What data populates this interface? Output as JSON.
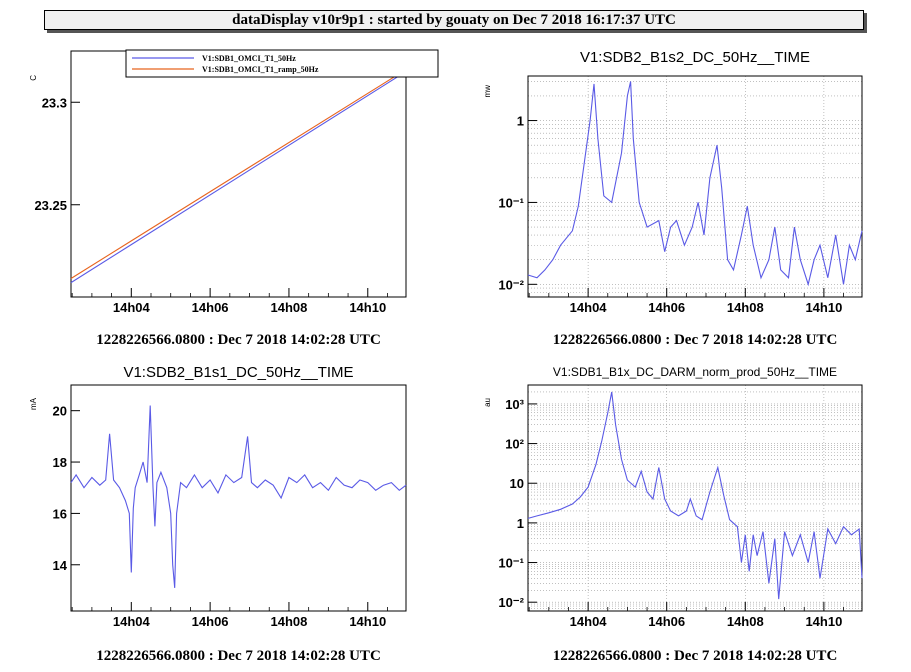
{
  "window": {
    "title": "dataDisplay v10r9p1 : started by gouaty on Dec  7 2018 16:17:37 UTC"
  },
  "colors": {
    "blue": "#5a5ae6",
    "orange": "#e8641e",
    "grid": "#9a9a9a"
  },
  "x_ticks": [
    "14h04",
    "14h06",
    "14h08",
    "14h10"
  ],
  "chart_data": [
    {
      "type": "line",
      "title": "",
      "ylabel": "C",
      "caption": "1228226566.0800 : Dec  7 2018 14:02:28 UTC",
      "xlabels": [
        "14h04",
        "14h06",
        "14h08",
        "14h10"
      ],
      "xlim_minutes": [
        2.47,
        10.97
      ],
      "ylim": [
        23.205,
        23.325
      ],
      "ytick_labels": [
        "23.25",
        "23.3"
      ],
      "ytick_values": [
        23.25,
        23.3
      ],
      "grid": false,
      "legend": "top",
      "series": [
        {
          "name": "V1:SDB1_OMCI_T1_50Hz",
          "color": "#5a5ae6",
          "x_minutes": [
            2.47,
            10.97
          ],
          "y": [
            23.212,
            23.315
          ]
        },
        {
          "name": "V1:SDB1_OMCI_T1_ramp_50Hz",
          "color": "#e8641e",
          "x_minutes": [
            2.47,
            10.97
          ],
          "y": [
            23.214,
            23.316
          ]
        }
      ]
    },
    {
      "type": "line",
      "title": "V1:SDB2_B1s2_DC_50Hz__TIME",
      "ylabel": "mw",
      "caption": "1228226566.0800 : Dec  7 2018 14:02:28 UTC",
      "xlabels": [
        "14h04",
        "14h06",
        "14h08",
        "14h10"
      ],
      "xlim_minutes": [
        2.47,
        10.97
      ],
      "yscale": "log",
      "ylim": [
        0.007,
        3.5
      ],
      "ytick_labels": [
        "10⁻²",
        "10⁻¹",
        "1"
      ],
      "ytick_values": [
        0.01,
        0.1,
        1
      ],
      "grid": true,
      "series": [
        {
          "name": "",
          "color": "#5a5ae6",
          "x_minutes": [
            2.47,
            2.7,
            2.9,
            3.1,
            3.3,
            3.6,
            3.75,
            3.9,
            4.05,
            4.15,
            4.25,
            4.4,
            4.6,
            4.85,
            5.0,
            5.08,
            5.15,
            5.3,
            5.5,
            5.8,
            5.95,
            6.1,
            6.25,
            6.45,
            6.65,
            6.8,
            6.95,
            7.1,
            7.28,
            7.4,
            7.55,
            7.7,
            7.9,
            8.05,
            8.2,
            8.4,
            8.6,
            8.75,
            8.9,
            9.1,
            9.25,
            9.4,
            9.6,
            9.75,
            9.9,
            10.1,
            10.3,
            10.5,
            10.65,
            10.8,
            10.97
          ],
          "y": [
            0.013,
            0.012,
            0.015,
            0.02,
            0.03,
            0.045,
            0.09,
            0.3,
            1.0,
            2.8,
            0.6,
            0.12,
            0.1,
            0.4,
            2.0,
            3.0,
            0.6,
            0.1,
            0.05,
            0.06,
            0.025,
            0.05,
            0.06,
            0.03,
            0.05,
            0.1,
            0.04,
            0.2,
            0.5,
            0.15,
            0.02,
            0.015,
            0.04,
            0.09,
            0.03,
            0.012,
            0.02,
            0.05,
            0.015,
            0.012,
            0.05,
            0.02,
            0.01,
            0.02,
            0.03,
            0.012,
            0.04,
            0.01,
            0.03,
            0.02,
            0.045
          ]
        }
      ]
    },
    {
      "type": "line",
      "title": "V1:SDB2_B1s1_DC_50Hz__TIME",
      "ylabel": "mA",
      "caption": "1228226566.0800 : Dec  7 2018 14:02:28 UTC",
      "xlabels": [
        "14h04",
        "14h06",
        "14h08",
        "14h10"
      ],
      "xlim_minutes": [
        2.47,
        10.97
      ],
      "ylim": [
        12.2,
        21.0
      ],
      "ytick_labels": [
        "14",
        "16",
        "18",
        "20"
      ],
      "ytick_values": [
        14,
        16,
        18,
        20
      ],
      "grid": false,
      "series": [
        {
          "name": "",
          "color": "#5a5ae6",
          "x_minutes": [
            2.47,
            2.6,
            2.8,
            3.0,
            3.2,
            3.35,
            3.45,
            3.55,
            3.7,
            3.85,
            3.95,
            4.0,
            4.05,
            4.1,
            4.2,
            4.3,
            4.4,
            4.48,
            4.55,
            4.6,
            4.65,
            4.75,
            4.9,
            5.0,
            5.05,
            5.1,
            5.15,
            5.25,
            5.4,
            5.6,
            5.8,
            6.0,
            6.2,
            6.4,
            6.6,
            6.8,
            6.95,
            7.05,
            7.2,
            7.4,
            7.6,
            7.8,
            8.0,
            8.2,
            8.4,
            8.6,
            8.8,
            9.0,
            9.2,
            9.4,
            9.6,
            9.8,
            10.0,
            10.2,
            10.4,
            10.6,
            10.8,
            10.97
          ],
          "y": [
            17.2,
            17.5,
            17.0,
            17.4,
            17.1,
            17.3,
            19.1,
            17.3,
            17.0,
            16.5,
            16.0,
            13.7,
            16.2,
            17.0,
            17.5,
            18.0,
            17.2,
            20.2,
            17.0,
            15.5,
            17.2,
            17.6,
            17.0,
            16.0,
            14.0,
            13.1,
            16.0,
            17.2,
            17.0,
            17.5,
            17.0,
            17.3,
            16.8,
            17.5,
            17.2,
            17.4,
            19.0,
            17.2,
            17.0,
            17.3,
            17.1,
            16.6,
            17.4,
            17.2,
            17.5,
            17.0,
            17.2,
            16.9,
            17.4,
            17.1,
            17.0,
            17.3,
            17.2,
            16.9,
            17.1,
            17.2,
            16.9,
            17.1
          ]
        }
      ]
    },
    {
      "type": "line",
      "title": "V1:SDB1_B1x_DC_DARM_norm_prod_50Hz__TIME",
      "ylabel": "au",
      "caption": "1228226566.0800 : Dec  7 2018 14:02:28 UTC",
      "xlabels": [
        "14h04",
        "14h06",
        "14h08",
        "14h10"
      ],
      "xlim_minutes": [
        2.47,
        10.97
      ],
      "yscale": "log",
      "ylim": [
        0.006,
        3000
      ],
      "ytick_labels": [
        "10⁻²",
        "10⁻¹",
        "1",
        "10",
        "10²",
        "10³"
      ],
      "ytick_values": [
        0.01,
        0.1,
        1,
        10,
        100,
        1000
      ],
      "grid": true,
      "series": [
        {
          "name": "",
          "color": "#5a5ae6",
          "x_minutes": [
            2.47,
            2.7,
            3.0,
            3.3,
            3.6,
            3.8,
            4.0,
            4.2,
            4.35,
            4.5,
            4.6,
            4.7,
            4.85,
            5.0,
            5.2,
            5.35,
            5.5,
            5.65,
            5.8,
            5.95,
            6.1,
            6.3,
            6.5,
            6.6,
            6.75,
            6.9,
            7.1,
            7.3,
            7.45,
            7.6,
            7.8,
            7.9,
            8.0,
            8.1,
            8.2,
            8.3,
            8.45,
            8.6,
            8.75,
            8.85,
            9.0,
            9.2,
            9.4,
            9.6,
            9.75,
            9.9,
            10.1,
            10.3,
            10.5,
            10.7,
            10.9,
            10.97
          ],
          "y": [
            1.3,
            1.5,
            1.8,
            2.2,
            3.0,
            4.5,
            8,
            30,
            120,
            600,
            2000,
            300,
            40,
            12,
            8,
            20,
            6,
            4,
            25,
            4,
            2,
            1.5,
            2,
            4,
            1.5,
            1.2,
            6,
            25,
            5,
            1.2,
            0.8,
            0.1,
            0.5,
            0.06,
            0.5,
            0.15,
            0.6,
            0.03,
            0.4,
            0.012,
            0.6,
            0.15,
            0.5,
            0.1,
            0.6,
            0.04,
            0.7,
            0.3,
            0.8,
            0.5,
            0.7,
            0.04
          ]
        }
      ]
    }
  ]
}
